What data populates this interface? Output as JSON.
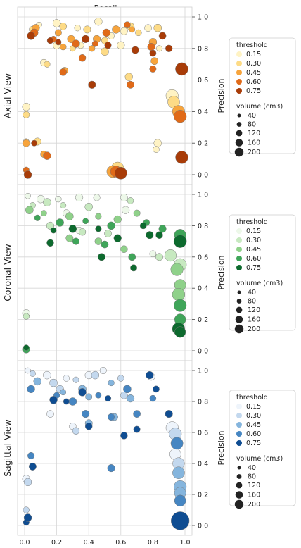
{
  "figure": {
    "top_title": "Recall",
    "x_ticks": [
      "0.0",
      "0.2",
      "0.4",
      "0.6",
      "0.8",
      "1.0"
    ],
    "y_ticks": [
      "0.0",
      "0.2",
      "0.4",
      "0.6",
      "0.8",
      "1.0"
    ],
    "y_axis_label": "Precision"
  },
  "chart_data": [
    {
      "type": "scatter",
      "row_label": "Axial View",
      "xlabel": "Recall",
      "ylabel": "Precision",
      "xlim": [
        0,
        1
      ],
      "ylim": [
        0,
        1
      ],
      "grid": true,
      "legend_placement": "right",
      "legend": {
        "hue_title": "threshold",
        "hue_levels": [
          "0.15",
          "0.30",
          "0.45",
          "0.60",
          "0.75"
        ],
        "hue_colors": [
          "#fff3c4",
          "#fddb86",
          "#f7a43c",
          "#e06a18",
          "#a83c08"
        ],
        "size_title": "volume (cm3)",
        "size_levels": [
          "40",
          "80",
          "120",
          "160",
          "200"
        ]
      },
      "points": [
        {
          "x": 0.09,
          "y": 0.95,
          "t": 0
        },
        {
          "x": 0.2,
          "y": 0.96,
          "t": 0
        },
        {
          "x": 0.33,
          "y": 0.93,
          "t": 0
        },
        {
          "x": 0.46,
          "y": 0.97,
          "t": 0
        },
        {
          "x": 0.54,
          "y": 0.88,
          "t": 0
        },
        {
          "x": 0.62,
          "y": 0.91,
          "t": 0
        },
        {
          "x": 0.77,
          "y": 0.93,
          "t": 0
        },
        {
          "x": 0.12,
          "y": 0.71,
          "t": 0
        },
        {
          "x": 0.2,
          "y": 0.82,
          "t": 0
        },
        {
          "x": 0.35,
          "y": 0.82,
          "t": 0
        },
        {
          "x": 0.6,
          "y": 0.82,
          "t": 0
        },
        {
          "x": 0.84,
          "y": 0.8,
          "t": 0
        },
        {
          "x": 0.01,
          "y": 0.43,
          "t": 0
        },
        {
          "x": 0.01,
          "y": 0.21,
          "t": 0
        },
        {
          "x": 0.83,
          "y": 0.2,
          "t": 0
        },
        {
          "x": 0.82,
          "y": 0.16,
          "t": 0
        },
        {
          "x": 0.92,
          "y": 0.5,
          "t": 0
        },
        {
          "x": 0.05,
          "y": 0.92,
          "t": 1
        },
        {
          "x": 0.24,
          "y": 0.94,
          "t": 1
        },
        {
          "x": 0.39,
          "y": 0.92,
          "t": 1
        },
        {
          "x": 0.5,
          "y": 0.85,
          "t": 1
        },
        {
          "x": 0.66,
          "y": 0.94,
          "t": 1
        },
        {
          "x": 0.71,
          "y": 0.9,
          "t": 1
        },
        {
          "x": 0.83,
          "y": 0.93,
          "t": 1
        },
        {
          "x": 0.3,
          "y": 0.8,
          "t": 1
        },
        {
          "x": 0.5,
          "y": 0.78,
          "t": 1
        },
        {
          "x": 0.14,
          "y": 0.7,
          "t": 1
        },
        {
          "x": 0.65,
          "y": 0.62,
          "t": 1
        },
        {
          "x": 0.01,
          "y": 0.38,
          "t": 1
        },
        {
          "x": 0.08,
          "y": 0.21,
          "t": 1
        },
        {
          "x": 0.93,
          "y": 0.46,
          "t": 1
        },
        {
          "x": 0.58,
          "y": 0.04,
          "t": 1
        },
        {
          "x": 0.07,
          "y": 0.93,
          "t": 2
        },
        {
          "x": 0.21,
          "y": 0.9,
          "t": 2
        },
        {
          "x": 0.29,
          "y": 0.86,
          "t": 2
        },
        {
          "x": 0.42,
          "y": 0.8,
          "t": 2
        },
        {
          "x": 0.57,
          "y": 0.92,
          "t": 2
        },
        {
          "x": 0.67,
          "y": 0.92,
          "t": 2
        },
        {
          "x": 0.8,
          "y": 0.84,
          "t": 2
        },
        {
          "x": 0.24,
          "y": 0.81,
          "t": 2
        },
        {
          "x": 0.45,
          "y": 0.86,
          "t": 2
        },
        {
          "x": 0.25,
          "y": 0.66,
          "t": 2
        },
        {
          "x": 0.81,
          "y": 0.72,
          "t": 2
        },
        {
          "x": 0.01,
          "y": 0.2,
          "t": 2
        },
        {
          "x": 0.12,
          "y": 0.13,
          "t": 2
        },
        {
          "x": 0.96,
          "y": 0.4,
          "t": 2
        },
        {
          "x": 0.55,
          "y": 0.02,
          "t": 2
        },
        {
          "x": 0.06,
          "y": 0.9,
          "t": 3
        },
        {
          "x": 0.18,
          "y": 0.86,
          "t": 3
        },
        {
          "x": 0.32,
          "y": 0.83,
          "t": 3
        },
        {
          "x": 0.44,
          "y": 0.83,
          "t": 3
        },
        {
          "x": 0.51,
          "y": 0.9,
          "t": 3
        },
        {
          "x": 0.64,
          "y": 0.95,
          "t": 3
        },
        {
          "x": 0.79,
          "y": 0.81,
          "t": 3
        },
        {
          "x": 0.24,
          "y": 0.65,
          "t": 3
        },
        {
          "x": 0.36,
          "y": 0.74,
          "t": 3
        },
        {
          "x": 0.66,
          "y": 0.57,
          "t": 3
        },
        {
          "x": 0.8,
          "y": 0.67,
          "t": 3
        },
        {
          "x": 0.97,
          "y": 0.37,
          "t": 3
        },
        {
          "x": 0.01,
          "y": 0.03,
          "t": 3
        },
        {
          "x": 0.14,
          "y": 0.12,
          "t": 3
        },
        {
          "x": 0.57,
          "y": 0.02,
          "t": 3
        },
        {
          "x": 0.04,
          "y": 0.88,
          "t": 4
        },
        {
          "x": 0.16,
          "y": 0.85,
          "t": 4
        },
        {
          "x": 0.38,
          "y": 0.86,
          "t": 4
        },
        {
          "x": 0.52,
          "y": 0.82,
          "t": 4
        },
        {
          "x": 0.69,
          "y": 0.79,
          "t": 4
        },
        {
          "x": 0.86,
          "y": 0.88,
          "t": 4
        },
        {
          "x": 0.9,
          "y": 0.8,
          "t": 4
        },
        {
          "x": 0.42,
          "y": 0.57,
          "t": 4
        },
        {
          "x": 0.8,
          "y": 0.77,
          "t": 4
        },
        {
          "x": 0.98,
          "y": 0.67,
          "t": 4
        },
        {
          "x": 0.21,
          "y": 0.84,
          "t": 4
        },
        {
          "x": 0.02,
          "y": 0.0,
          "t": 4
        },
        {
          "x": 0.06,
          "y": 0.2,
          "t": 4
        },
        {
          "x": 0.98,
          "y": 0.11,
          "t": 4
        },
        {
          "x": 0.6,
          "y": 0.01,
          "t": 4
        }
      ]
    },
    {
      "type": "scatter",
      "row_label": "Coronal View",
      "xlabel": "Recall",
      "ylabel": "Precision",
      "xlim": [
        0,
        1
      ],
      "ylim": [
        0,
        1
      ],
      "grid": true,
      "legend_placement": "right",
      "legend": {
        "hue_title": "threshold",
        "hue_levels": [
          "0.15",
          "0.30",
          "0.45",
          "0.60",
          "0.75"
        ],
        "hue_colors": [
          "#edf8e9",
          "#c7e9c0",
          "#8fd18a",
          "#3fa559",
          "#0d6a2e"
        ],
        "size_title": "volume (cm3)",
        "size_levels": [
          "40",
          "80",
          "120",
          "160",
          "200"
        ]
      },
      "points": [
        {
          "x": 0.02,
          "y": 0.99,
          "t": 0
        },
        {
          "x": 0.1,
          "y": 0.97,
          "t": 0
        },
        {
          "x": 0.21,
          "y": 0.97,
          "t": 0
        },
        {
          "x": 0.34,
          "y": 0.98,
          "t": 0
        },
        {
          "x": 0.45,
          "y": 0.98,
          "t": 0
        },
        {
          "x": 0.62,
          "y": 0.98,
          "t": 0
        },
        {
          "x": 0.26,
          "y": 0.88,
          "t": 0
        },
        {
          "x": 0.34,
          "y": 0.77,
          "t": 0
        },
        {
          "x": 0.63,
          "y": 0.9,
          "t": 0
        },
        {
          "x": 0.8,
          "y": 0.62,
          "t": 0
        },
        {
          "x": 0.01,
          "y": 0.24,
          "t": 0
        },
        {
          "x": 0.05,
          "y": 0.93,
          "t": 1
        },
        {
          "x": 0.14,
          "y": 0.95,
          "t": 1
        },
        {
          "x": 0.24,
          "y": 0.93,
          "t": 1
        },
        {
          "x": 0.4,
          "y": 0.92,
          "t": 1
        },
        {
          "x": 0.66,
          "y": 0.96,
          "t": 1
        },
        {
          "x": 0.16,
          "y": 0.8,
          "t": 1
        },
        {
          "x": 0.36,
          "y": 0.76,
          "t": 1
        },
        {
          "x": 0.52,
          "y": 0.75,
          "t": 1
        },
        {
          "x": 0.84,
          "y": 0.6,
          "t": 1
        },
        {
          "x": 0.91,
          "y": 0.61,
          "t": 1
        },
        {
          "x": 0.97,
          "y": 0.55,
          "t": 1
        },
        {
          "x": 0.01,
          "y": 0.22,
          "t": 1
        },
        {
          "x": 0.03,
          "y": 0.9,
          "t": 2
        },
        {
          "x": 0.12,
          "y": 0.88,
          "t": 2
        },
        {
          "x": 0.28,
          "y": 0.86,
          "t": 2
        },
        {
          "x": 0.46,
          "y": 0.86,
          "t": 2
        },
        {
          "x": 0.58,
          "y": 0.84,
          "t": 2
        },
        {
          "x": 0.7,
          "y": 0.88,
          "t": 2
        },
        {
          "x": 0.28,
          "y": 0.72,
          "t": 2
        },
        {
          "x": 0.46,
          "y": 0.7,
          "t": 2
        },
        {
          "x": 0.62,
          "y": 0.65,
          "t": 2
        },
        {
          "x": 0.95,
          "y": 0.52,
          "t": 2
        },
        {
          "x": 0.97,
          "y": 0.42,
          "t": 2
        },
        {
          "x": 0.96,
          "y": 0.36,
          "t": 2
        },
        {
          "x": 0.08,
          "y": 0.85,
          "t": 3
        },
        {
          "x": 0.22,
          "y": 0.82,
          "t": 3
        },
        {
          "x": 0.38,
          "y": 0.83,
          "t": 3
        },
        {
          "x": 0.54,
          "y": 0.8,
          "t": 3
        },
        {
          "x": 0.76,
          "y": 0.82,
          "t": 3
        },
        {
          "x": 0.86,
          "y": 0.78,
          "t": 3
        },
        {
          "x": 0.32,
          "y": 0.7,
          "t": 3
        },
        {
          "x": 0.5,
          "y": 0.68,
          "t": 3
        },
        {
          "x": 0.67,
          "y": 0.6,
          "t": 3
        },
        {
          "x": 0.97,
          "y": 0.74,
          "t": 3
        },
        {
          "x": 0.97,
          "y": 0.29,
          "t": 3
        },
        {
          "x": 0.97,
          "y": 0.2,
          "t": 3
        },
        {
          "x": 0.01,
          "y": 0.01,
          "t": 3
        },
        {
          "x": 0.18,
          "y": 0.77,
          "t": 4
        },
        {
          "x": 0.3,
          "y": 0.78,
          "t": 4
        },
        {
          "x": 0.46,
          "y": 0.78,
          "t": 4
        },
        {
          "x": 0.58,
          "y": 0.72,
          "t": 4
        },
        {
          "x": 0.74,
          "y": 0.8,
          "t": 4
        },
        {
          "x": 0.78,
          "y": 0.74,
          "t": 4
        },
        {
          "x": 0.84,
          "y": 0.74,
          "t": 4
        },
        {
          "x": 0.16,
          "y": 0.69,
          "t": 4
        },
        {
          "x": 0.48,
          "y": 0.6,
          "t": 4
        },
        {
          "x": 0.68,
          "y": 0.53,
          "t": 4
        },
        {
          "x": 0.96,
          "y": 0.14,
          "t": 4
        },
        {
          "x": 0.97,
          "y": 0.12,
          "t": 4
        },
        {
          "x": 0.97,
          "y": 0.7,
          "t": 4
        },
        {
          "x": 0.01,
          "y": 0.02,
          "t": 4
        }
      ]
    },
    {
      "type": "scatter",
      "row_label": "Sagittal View",
      "xlabel": "Recall",
      "ylabel": "Precision",
      "xlim": [
        0,
        1
      ],
      "ylim": [
        0,
        1
      ],
      "grid": true,
      "legend_placement": "right",
      "legend": {
        "hue_title": "threshold",
        "hue_levels": [
          "0.15",
          "0.30",
          "0.45",
          "0.60",
          "0.75"
        ],
        "hue_colors": [
          "#eef4fb",
          "#c3d8ee",
          "#85b5dd",
          "#4686c2",
          "#0f4d92"
        ],
        "size_title": "volume (cm3)",
        "size_levels": [
          "40",
          "80",
          "120",
          "160",
          "200"
        ]
      },
      "points": [
        {
          "x": 0.02,
          "y": 1.0,
          "t": 0
        },
        {
          "x": 0.14,
          "y": 0.97,
          "t": 0
        },
        {
          "x": 0.26,
          "y": 0.95,
          "t": 0
        },
        {
          "x": 0.4,
          "y": 0.97,
          "t": 0
        },
        {
          "x": 0.49,
          "y": 1.0,
          "t": 0
        },
        {
          "x": 0.79,
          "y": 0.96,
          "t": 0
        },
        {
          "x": 0.16,
          "y": 0.72,
          "t": 0
        },
        {
          "x": 0.3,
          "y": 0.64,
          "t": 0
        },
        {
          "x": 0.92,
          "y": 0.63,
          "t": 0
        },
        {
          "x": 0.94,
          "y": 0.46,
          "t": 0
        },
        {
          "x": 0.01,
          "y": 0.3,
          "t": 0
        },
        {
          "x": 0.05,
          "y": 0.98,
          "t": 1
        },
        {
          "x": 0.18,
          "y": 0.92,
          "t": 1
        },
        {
          "x": 0.32,
          "y": 0.94,
          "t": 1
        },
        {
          "x": 0.44,
          "y": 0.97,
          "t": 1
        },
        {
          "x": 0.6,
          "y": 0.95,
          "t": 1
        },
        {
          "x": 0.22,
          "y": 0.88,
          "t": 1
        },
        {
          "x": 0.32,
          "y": 0.61,
          "t": 1
        },
        {
          "x": 0.62,
          "y": 0.84,
          "t": 1
        },
        {
          "x": 0.94,
          "y": 0.59,
          "t": 1
        },
        {
          "x": 0.96,
          "y": 0.4,
          "t": 1
        },
        {
          "x": 0.02,
          "y": 0.28,
          "t": 1
        },
        {
          "x": 0.01,
          "y": 0.1,
          "t": 1
        },
        {
          "x": 0.08,
          "y": 0.93,
          "t": 2
        },
        {
          "x": 0.24,
          "y": 0.86,
          "t": 2
        },
        {
          "x": 0.36,
          "y": 0.88,
          "t": 2
        },
        {
          "x": 0.54,
          "y": 0.92,
          "t": 2
        },
        {
          "x": 0.66,
          "y": 0.82,
          "t": 2
        },
        {
          "x": 0.4,
          "y": 0.83,
          "t": 2
        },
        {
          "x": 0.4,
          "y": 0.66,
          "t": 2
        },
        {
          "x": 0.56,
          "y": 0.7,
          "t": 2
        },
        {
          "x": 0.96,
          "y": 0.34,
          "t": 2
        },
        {
          "x": 0.97,
          "y": 0.25,
          "t": 2
        },
        {
          "x": 0.97,
          "y": 0.21,
          "t": 2
        },
        {
          "x": 0.04,
          "y": 0.88,
          "t": 3
        },
        {
          "x": 0.2,
          "y": 0.84,
          "t": 3
        },
        {
          "x": 0.3,
          "y": 0.8,
          "t": 3
        },
        {
          "x": 0.46,
          "y": 0.84,
          "t": 3
        },
        {
          "x": 0.64,
          "y": 0.88,
          "t": 3
        },
        {
          "x": 0.8,
          "y": 0.82,
          "t": 3
        },
        {
          "x": 0.38,
          "y": 0.72,
          "t": 3
        },
        {
          "x": 0.54,
          "y": 0.7,
          "t": 3
        },
        {
          "x": 0.7,
          "y": 0.72,
          "t": 3
        },
        {
          "x": 0.95,
          "y": 0.53,
          "t": 3
        },
        {
          "x": 0.04,
          "y": 0.45,
          "t": 3
        },
        {
          "x": 0.54,
          "y": 0.37,
          "t": 3
        },
        {
          "x": 0.97,
          "y": 0.16,
          "t": 3
        },
        {
          "x": 0.18,
          "y": 0.81,
          "t": 4
        },
        {
          "x": 0.26,
          "y": 0.8,
          "t": 4
        },
        {
          "x": 0.36,
          "y": 0.86,
          "t": 4
        },
        {
          "x": 0.52,
          "y": 0.82,
          "t": 4
        },
        {
          "x": 0.78,
          "y": 0.97,
          "t": 4
        },
        {
          "x": 0.82,
          "y": 0.88,
          "t": 4
        },
        {
          "x": 0.9,
          "y": 0.72,
          "t": 4
        },
        {
          "x": 0.4,
          "y": 0.64,
          "t": 4
        },
        {
          "x": 0.62,
          "y": 0.58,
          "t": 4
        },
        {
          "x": 0.05,
          "y": 0.38,
          "t": 4
        },
        {
          "x": 0.7,
          "y": 0.62,
          "t": 4
        },
        {
          "x": 0.97,
          "y": 0.03,
          "t": 4
        },
        {
          "x": 0.01,
          "y": 0.02,
          "t": 4
        },
        {
          "x": 0.02,
          "y": 0.05,
          "t": 4
        }
      ]
    }
  ]
}
